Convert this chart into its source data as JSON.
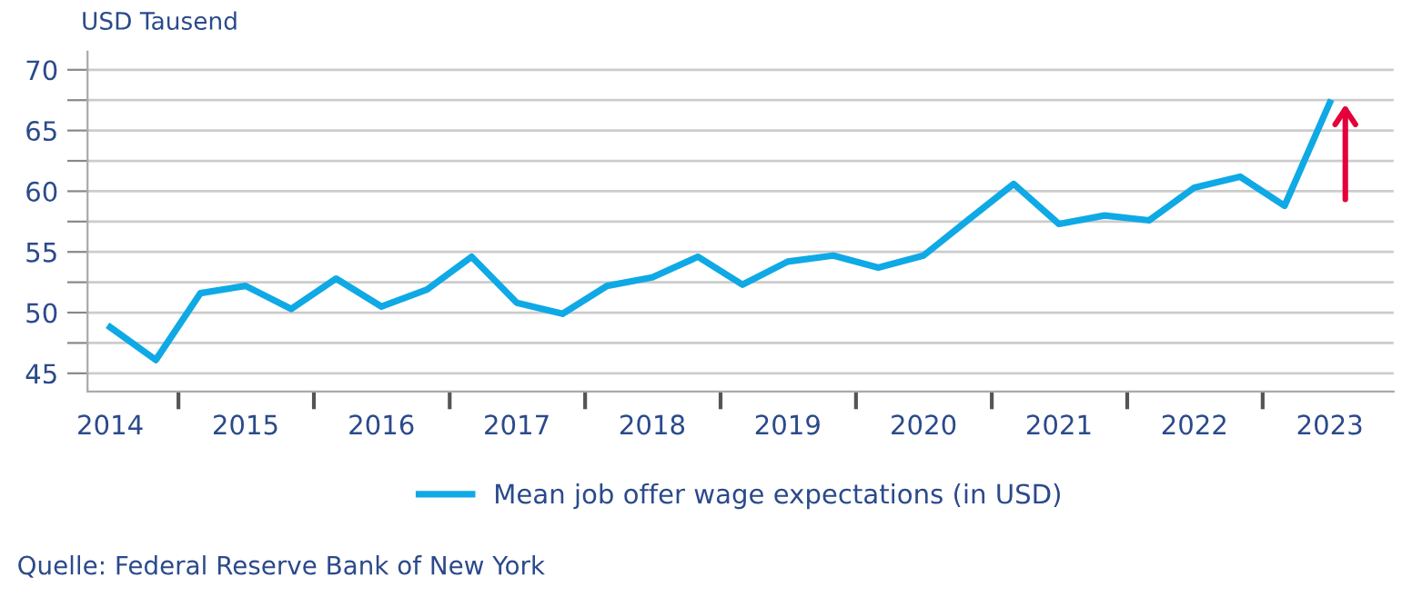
{
  "chart_data": {
    "type": "line",
    "ylabel": "USD Tausend",
    "x": [
      "2014-07",
      "2014-11",
      "2015-03",
      "2015-07",
      "2015-11",
      "2016-03",
      "2016-07",
      "2016-11",
      "2017-03",
      "2017-07",
      "2017-11",
      "2018-03",
      "2018-07",
      "2018-11",
      "2019-03",
      "2019-07",
      "2019-11",
      "2020-03",
      "2020-07",
      "2020-11",
      "2021-03",
      "2021-07",
      "2021-11",
      "2022-03",
      "2022-07",
      "2022-11",
      "2023-03",
      "2023-07"
    ],
    "series": [
      {
        "name": "Mean job offer wage expectations (in USD)",
        "color": "#0fa9e6",
        "values": [
          48.8,
          46.1,
          51.6,
          52.2,
          50.3,
          52.8,
          50.5,
          51.9,
          54.6,
          50.8,
          49.9,
          52.2,
          52.9,
          54.6,
          52.3,
          54.2,
          54.7,
          53.7,
          54.7,
          57.7,
          60.6,
          57.3,
          58.0,
          57.6,
          60.3,
          61.2,
          58.8,
          67.3
        ]
      }
    ],
    "xlim": [
      "2014-05-01",
      "2023-12-20"
    ],
    "xticks": [
      {
        "value": "2014-07-01",
        "label": "2014"
      },
      {
        "value": "2015-01-01",
        "label": null
      },
      {
        "value": "2015-07-01",
        "label": "2015"
      },
      {
        "value": "2016-01-01",
        "label": null
      },
      {
        "value": "2016-07-01",
        "label": "2016"
      },
      {
        "value": "2017-01-01",
        "label": null
      },
      {
        "value": "2017-07-01",
        "label": "2017"
      },
      {
        "value": "2018-01-01",
        "label": null
      },
      {
        "value": "2018-07-01",
        "label": "2018"
      },
      {
        "value": "2019-01-01",
        "label": null
      },
      {
        "value": "2019-07-01",
        "label": "2019"
      },
      {
        "value": "2020-01-01",
        "label": null
      },
      {
        "value": "2020-07-01",
        "label": "2020"
      },
      {
        "value": "2021-01-01",
        "label": null
      },
      {
        "value": "2021-07-01",
        "label": "2021"
      },
      {
        "value": "2022-01-01",
        "label": null
      },
      {
        "value": "2022-07-01",
        "label": "2022"
      },
      {
        "value": "2023-01-01",
        "label": null
      },
      {
        "value": "2023-07-01",
        "label": "2023"
      }
    ],
    "ylim": [
      43.5,
      71.5
    ],
    "yticks": [
      45,
      {
        "value": 47.5,
        "label": null
      },
      50,
      {
        "value": 52.5,
        "label": null
      },
      55,
      {
        "value": 57.5,
        "label": null
      },
      60,
      {
        "value": 62.5,
        "label": null
      },
      65,
      {
        "value": 67.5,
        "label": null
      },
      70
    ],
    "grid": "y",
    "legend": "bottom",
    "marker": "none",
    "line_style": "solid",
    "annotations": [
      "Quelle: Federal Reserve Bank of New York"
    ]
  }
}
